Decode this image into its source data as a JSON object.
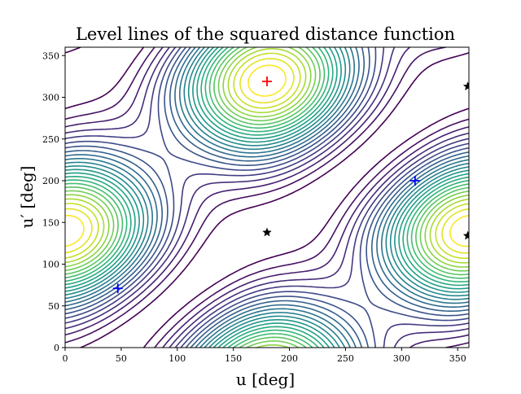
{
  "chart_data": {
    "type": "contour",
    "title": "Level lines of the squared distance function",
    "xlabel": "u [deg]",
    "ylabel": "u′ [deg]",
    "xlim": [
      0,
      360
    ],
    "ylim": [
      0,
      360
    ],
    "xticks": [
      0,
      50,
      100,
      150,
      200,
      250,
      300,
      350
    ],
    "yticks": [
      0,
      50,
      100,
      150,
      200,
      250,
      300,
      350
    ],
    "colormap": "viridis",
    "levels": 24,
    "grid": false,
    "markers": [
      {
        "kind": "maximum",
        "symbol": "+",
        "color": "#ff0000",
        "u": 180,
        "u_prime": 319
      },
      {
        "kind": "minimum",
        "symbol": "+",
        "color": "#0000ff",
        "u": 47,
        "u_prime": 71
      },
      {
        "kind": "minimum",
        "symbol": "+",
        "color": "#0000ff",
        "u": 312,
        "u_prime": 200
      },
      {
        "kind": "saddle",
        "symbol": "★",
        "color": "#000000",
        "u": 180,
        "u_prime": 138
      },
      {
        "kind": "saddle",
        "symbol": "★",
        "color": "#000000",
        "u": 359,
        "u_prime": 313
      },
      {
        "kind": "saddle",
        "symbol": "★",
        "color": "#000000",
        "u": 359,
        "u_prime": 134
      }
    ]
  }
}
